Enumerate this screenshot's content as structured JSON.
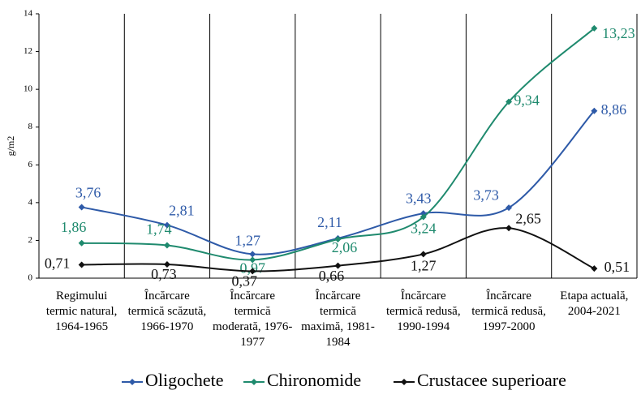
{
  "chart_data": {
    "type": "line",
    "y_label": "g/m2",
    "categories": [
      "Regimului termic natural, 1964-1965",
      "Încărcare termică scăzută, 1966-1970",
      "Încărcare termică moderată, 1976-1977",
      "Încărcare termică maximă, 1981-1984",
      "Încărcare termică redusă, 1990-1994",
      "Încărcare termică redusă, 1997-2000",
      "Etapa actuală, 2004-2021"
    ],
    "series": [
      {
        "name": "Oligochete",
        "color": "#2e5aa8",
        "values": [
          3.76,
          2.81,
          1.27,
          2.11,
          3.43,
          3.73,
          8.86
        ],
        "value_labels": [
          "3,76",
          "2,81",
          "1,27",
          "2,11",
          "3,43",
          "3,73",
          "8,86"
        ]
      },
      {
        "name": "Chironomide",
        "color": "#1f8a6e",
        "values": [
          1.86,
          1.74,
          0.97,
          2.06,
          3.24,
          9.34,
          13.23
        ],
        "value_labels": [
          "1,86",
          "1,74",
          "0,97",
          "2,06",
          "3,24",
          "9,34",
          "13,23"
        ]
      },
      {
        "name": "Crustacee superioare",
        "color": "#111111",
        "values": [
          0.71,
          0.73,
          0.37,
          0.66,
          1.27,
          2.65,
          0.51
        ],
        "value_labels": [
          "0,71",
          "0,73",
          "0,37",
          "0,66",
          "1,27",
          "2,65",
          "0,51"
        ]
      }
    ],
    "ylim": [
      0,
      14
    ],
    "yticks": [
      0,
      2,
      4,
      6,
      8,
      10,
      12,
      14
    ],
    "grid": false,
    "legend": "bottom"
  }
}
